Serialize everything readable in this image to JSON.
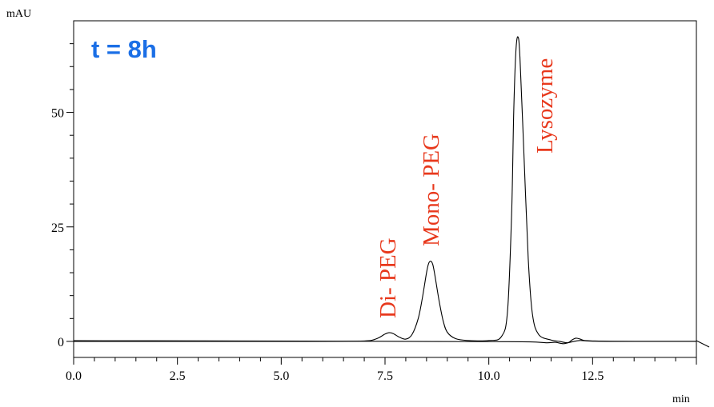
{
  "chart_data": {
    "type": "line",
    "title": "",
    "xlabel": "min",
    "ylabel": "mAU",
    "xlim": [
      0,
      15
    ],
    "ylim": [
      -3.5,
      70
    ],
    "x_ticks": [
      0,
      2.5,
      5,
      7.5,
      10,
      12.5
    ],
    "x_tick_labels": [
      "0.0",
      "2.5",
      "5.0",
      "7.5",
      "10.0",
      "12.5"
    ],
    "y_ticks": [
      0,
      25,
      50
    ],
    "y_tick_labels": [
      "0",
      "25",
      "50"
    ],
    "grid": false,
    "legend": "none",
    "time_annotation": "t = 8h",
    "line_color": "#000000",
    "annotation_color": "#e8391d",
    "time_annotation_color": "#1b6fe6",
    "peaks": [
      {
        "label": "Di- PEG",
        "rt": 7.6,
        "height": 1.9
      },
      {
        "label": "Mono- PEG",
        "rt": 8.6,
        "height": 17.5
      },
      {
        "label": "Lysozyme",
        "rt": 10.7,
        "height": 66.5
      }
    ],
    "series": [
      {
        "x": [
          0,
          3,
          6,
          7.0,
          7.2,
          7.35,
          7.5,
          7.6,
          7.7,
          7.85,
          8.0,
          8.15,
          8.3,
          8.4,
          8.5,
          8.55,
          8.6,
          8.65,
          8.7,
          8.8,
          8.9,
          9.0,
          9.2,
          9.5,
          10.0,
          10.3,
          10.45,
          10.55,
          10.6,
          10.65,
          10.7,
          10.75,
          10.85,
          10.95,
          11.05,
          11.2,
          11.5,
          11.7,
          11.9,
          12.0,
          12.1,
          12.2,
          12.3,
          12.5,
          13,
          14,
          15
        ],
        "y": [
          0,
          0,
          0,
          0.1,
          0.3,
          0.8,
          1.6,
          1.9,
          1.7,
          0.9,
          0.5,
          1.5,
          5.0,
          9.5,
          15.0,
          17.0,
          17.5,
          16.8,
          14.5,
          9.0,
          4.5,
          2.0,
          0.6,
          0.2,
          0.2,
          1.0,
          6.5,
          28.0,
          50.0,
          63.0,
          66.5,
          62.0,
          40.0,
          18.0,
          6.0,
          1.5,
          0.3,
          0.0,
          -0.3,
          0.3,
          0.7,
          0.5,
          0.2,
          0.1,
          0.0,
          0.0,
          0.0
        ]
      },
      {
        "x": [
          0,
          3,
          6,
          8,
          10,
          11,
          11.4,
          11.6,
          11.8,
          12.0,
          12.2,
          12.5,
          13.5,
          15
        ],
        "y": [
          0.15,
          0.12,
          0.05,
          0.0,
          -0.05,
          -0.1,
          -0.3,
          -0.2,
          -0.5,
          -0.1,
          0.2,
          0.05,
          0.0,
          0.0
        ]
      }
    ]
  }
}
